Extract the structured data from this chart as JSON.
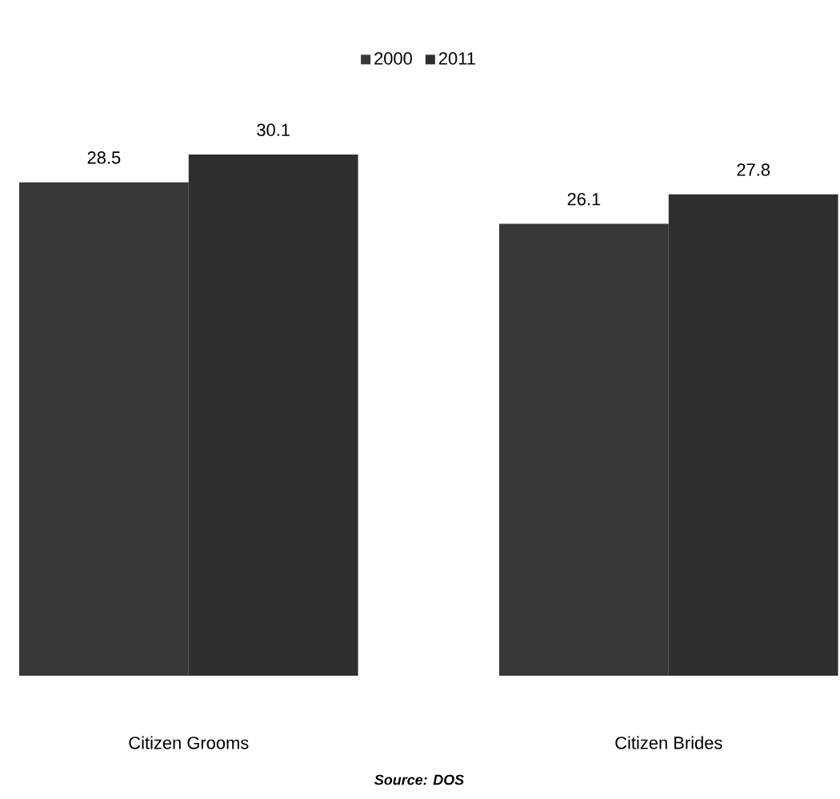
{
  "chart_data": {
    "type": "bar",
    "categories": [
      "Citizen Grooms",
      "Citizen Brides"
    ],
    "series": [
      {
        "name": "2000",
        "color": "#383838",
        "values": [
          28.5,
          26.1
        ]
      },
      {
        "name": "2011",
        "color": "#2e2e2e",
        "values": [
          30.1,
          27.8
        ]
      }
    ],
    "data_labels": true,
    "legend": "top",
    "tick_labels": "x",
    "annotations": [
      "Source: DOS"
    ]
  }
}
